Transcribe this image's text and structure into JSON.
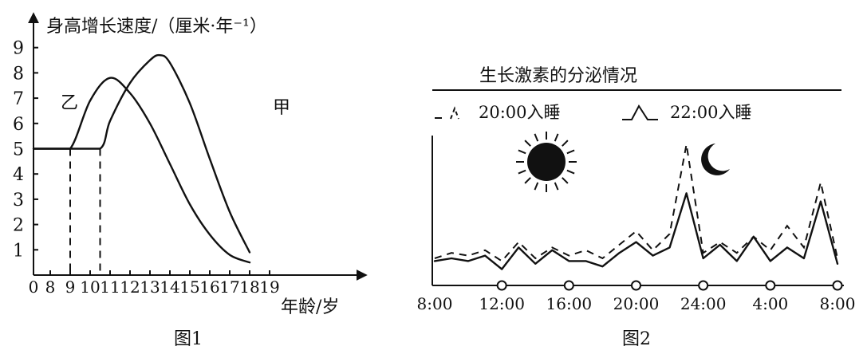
{
  "chart_data": [
    {
      "type": "line",
      "title": "",
      "caption": "图1",
      "ylabel": "身高增长速度/（厘米·年⁻¹）",
      "xlabel": "年龄/岁",
      "x_ticks": [
        "0",
        "8",
        "9",
        "10",
        "11",
        "12",
        "13",
        "14",
        "15",
        "16",
        "17",
        "18",
        "19"
      ],
      "y_ticks": [
        "1",
        "2",
        "3",
        "4",
        "5",
        "6",
        "7",
        "8",
        "9"
      ],
      "ylim": [
        0,
        9
      ],
      "series": [
        {
          "name": "乙",
          "x": [
            8,
            9,
            10,
            11,
            12,
            13,
            14,
            15,
            16,
            17,
            18
          ],
          "y": [
            5,
            5,
            6.9,
            7.8,
            7.2,
            6.0,
            4.4,
            2.8,
            1.6,
            0.8,
            0.5
          ]
        },
        {
          "name": "甲",
          "x": [
            8,
            9,
            10.5,
            11,
            12,
            13,
            13.5,
            14,
            15,
            16,
            17,
            18
          ],
          "y": [
            5,
            5,
            5,
            6.1,
            7.6,
            8.5,
            8.7,
            8.4,
            6.8,
            4.6,
            2.5,
            0.9
          ]
        }
      ],
      "reference_lines": [
        {
          "x": 9,
          "style": "dashed"
        },
        {
          "x": 10.5,
          "style": "dashed"
        }
      ]
    },
    {
      "type": "line",
      "title": "生长激素的分泌情况",
      "caption": "图2",
      "x_ticks": [
        "8:00",
        "12:00",
        "16:00",
        "20:00",
        "24:00",
        "4:00",
        "8:00"
      ],
      "icons": [
        "sun-icon",
        "moon-icon"
      ],
      "series": [
        {
          "name": "20:00入睡",
          "style": "dashed",
          "x": [
            8,
            9,
            10,
            11,
            12,
            13,
            14,
            15,
            16,
            17,
            18,
            19,
            20,
            21,
            22,
            23,
            24,
            25,
            26,
            27,
            28,
            29,
            30,
            31,
            32
          ],
          "y": [
            1.0,
            1.2,
            1.1,
            1.3,
            0.9,
            1.6,
            1.0,
            1.4,
            1.1,
            1.3,
            1.0,
            1.5,
            2.0,
            1.3,
            1.9,
            5.2,
            1.2,
            1.6,
            1.2,
            1.8,
            1.3,
            2.2,
            1.4,
            3.8,
            1.0
          ]
        },
        {
          "name": "22:00入睡",
          "style": "solid",
          "x": [
            8,
            9,
            10,
            11,
            12,
            13,
            14,
            15,
            16,
            17,
            18,
            19,
            20,
            21,
            22,
            23,
            24,
            25,
            26,
            27,
            28,
            29,
            30,
            31,
            32
          ],
          "y": [
            0.9,
            1.0,
            0.9,
            1.1,
            0.6,
            1.4,
            0.8,
            1.3,
            0.9,
            0.9,
            0.7,
            1.2,
            1.6,
            1.1,
            1.4,
            3.4,
            1.0,
            1.5,
            0.9,
            1.8,
            0.9,
            1.4,
            1.0,
            3.1,
            0.8
          ]
        }
      ]
    }
  ]
}
